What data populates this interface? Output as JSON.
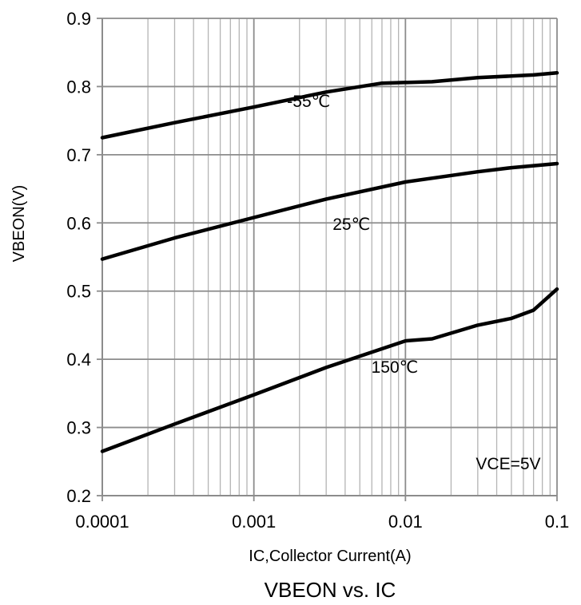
{
  "chart_data": {
    "type": "line",
    "title": "VBEON vs. IC",
    "xlabel": "IC,Collector Current(A)",
    "ylabel": "VBEON(V)",
    "x_scale": "log",
    "xlim": [
      0.0001,
      0.1
    ],
    "ylim": [
      0.2,
      0.9
    ],
    "x_ticks": [
      0.0001,
      0.001,
      0.01,
      0.1
    ],
    "x_tick_labels": [
      "0.0001",
      "0.001",
      "0.01",
      "0.1"
    ],
    "y_ticks": [
      0.2,
      0.3,
      0.4,
      0.5,
      0.6,
      0.7,
      0.8,
      0.9
    ],
    "y_tick_labels": [
      "0.2",
      "0.3",
      "0.4",
      "0.5",
      "0.6",
      "0.7",
      "0.8",
      "0.9"
    ],
    "grid": true,
    "annotation": "VCE=5V",
    "series": [
      {
        "name": "-55℃",
        "x": [
          0.0001,
          0.0003,
          0.001,
          0.003,
          0.007,
          0.015,
          0.03,
          0.07,
          0.1
        ],
        "y": [
          0.725,
          0.747,
          0.77,
          0.792,
          0.805,
          0.807,
          0.813,
          0.817,
          0.82
        ]
      },
      {
        "name": "25℃",
        "x": [
          0.0001,
          0.0003,
          0.001,
          0.003,
          0.01,
          0.03,
          0.05,
          0.1
        ],
        "y": [
          0.547,
          0.578,
          0.608,
          0.635,
          0.66,
          0.675,
          0.681,
          0.687
        ]
      },
      {
        "name": "150℃",
        "x": [
          0.0001,
          0.0003,
          0.001,
          0.003,
          0.01,
          0.015,
          0.03,
          0.05,
          0.07,
          0.1
        ],
        "y": [
          0.265,
          0.305,
          0.348,
          0.388,
          0.427,
          0.43,
          0.45,
          0.46,
          0.472,
          0.503
        ]
      }
    ],
    "curve_colors": [
      "#000000",
      "#000000",
      "#000000"
    ],
    "grid_color": "#b4b4b4"
  }
}
